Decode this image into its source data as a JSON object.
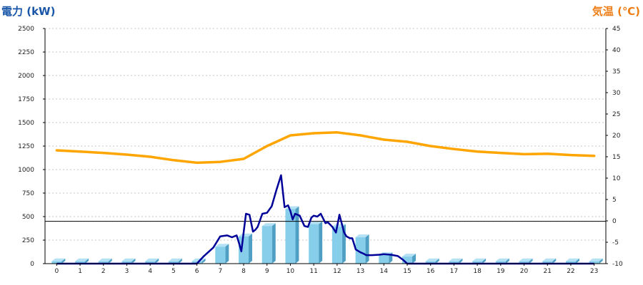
{
  "chart_data": {
    "type": "bar+line",
    "left_axis_title": "電力 (kW)",
    "right_axis_title": "気温 (℃)",
    "left_ylim": [
      0,
      2500
    ],
    "right_ylim": [
      -10,
      45
    ],
    "left_ticks": [
      0,
      250,
      500,
      750,
      1000,
      1250,
      1500,
      1750,
      2000,
      2250,
      2500
    ],
    "right_ticks": [
      -10,
      -5,
      0,
      5,
      10,
      15,
      20,
      25,
      30,
      35,
      40,
      45
    ],
    "categories": [
      "0",
      "1",
      "2",
      "3",
      "4",
      "5",
      "6",
      "7",
      "8",
      "9",
      "10",
      "11",
      "12",
      "13",
      "14",
      "15",
      "16",
      "17",
      "18",
      "19",
      "20",
      "21",
      "22",
      "23"
    ],
    "grid": true,
    "bars": {
      "values": [
        25,
        25,
        25,
        25,
        25,
        25,
        25,
        180,
        290,
        400,
        580,
        420,
        390,
        280,
        90,
        75,
        25,
        25,
        25,
        25,
        25,
        25,
        25,
        25
      ],
      "face_color": "#87ceeb",
      "side_color": "#4f9fc5",
      "top_color": "#b5e1f4"
    },
    "power_line": {
      "color": "#000099",
      "x": [
        0,
        5,
        6,
        6.3,
        6.7,
        7.0,
        7.3,
        7.5,
        7.7,
        7.8,
        7.9,
        8.0,
        8.1,
        8.25,
        8.4,
        8.5,
        8.6,
        8.8,
        9.0,
        9.2,
        9.4,
        9.6,
        9.75,
        9.9,
        10.0,
        10.1,
        10.2,
        10.4,
        10.6,
        10.75,
        10.9,
        11.0,
        11.15,
        11.3,
        11.5,
        11.6,
        11.8,
        11.95,
        12.1,
        12.3,
        12.4,
        12.55,
        12.65,
        12.8,
        13.0,
        13.1,
        13.25,
        13.5,
        13.8,
        14.0,
        14.3,
        14.6,
        14.8,
        15.0,
        16,
        23
      ],
      "y": [
        0,
        0,
        0,
        80,
        170,
        290,
        300,
        280,
        300,
        220,
        130,
        330,
        530,
        520,
        340,
        360,
        390,
        530,
        540,
        610,
        780,
        940,
        600,
        620,
        560,
        470,
        530,
        510,
        400,
        390,
        490,
        510,
        500,
        530,
        430,
        440,
        390,
        330,
        520,
        330,
        290,
        270,
        270,
        150,
        120,
        110,
        90,
        90,
        95,
        100,
        95,
        80,
        45,
        0,
        0,
        0
      ]
    },
    "temperature_line": {
      "color": "#ffa500",
      "x": [
        0,
        1,
        2,
        3,
        4,
        5,
        6,
        7,
        8,
        9,
        10,
        11,
        12,
        13,
        14,
        15,
        16,
        17,
        18,
        19,
        20,
        21,
        22,
        23
      ],
      "y": [
        16.5,
        16.2,
        15.9,
        15.5,
        15.0,
        14.2,
        13.6,
        13.8,
        14.5,
        17.5,
        20.0,
        20.5,
        20.7,
        20.0,
        19.0,
        18.5,
        17.5,
        16.8,
        16.2,
        15.9,
        15.6,
        15.7,
        15.4,
        15.2
      ]
    },
    "threshold_line": {
      "value": 450,
      "color": "#000000"
    }
  }
}
